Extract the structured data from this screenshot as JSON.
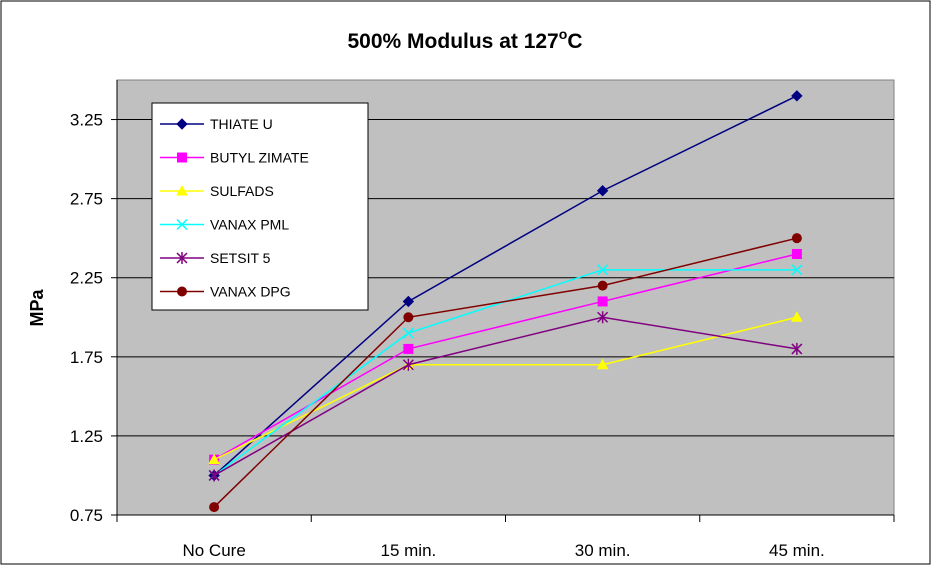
{
  "chart_data": {
    "type": "line",
    "title": "500% Modulus at 127",
    "title_superscript": "o",
    "title_suffix": "C",
    "xlabel": "",
    "ylabel": "MPa",
    "categories": [
      "No Cure",
      "15 min.",
      "30 min.",
      "45 min."
    ],
    "ylim": [
      0.75,
      3.5
    ],
    "yticks": [
      "0.75",
      "1.25",
      "1.75",
      "2.25",
      "2.75",
      "3.25"
    ],
    "grid": true,
    "legend_position": "top-left",
    "plot_background": "#c0c0c0",
    "series": [
      {
        "name": "THIATE U",
        "values": [
          1.0,
          2.1,
          2.8,
          3.4
        ],
        "color": "#000080",
        "marker": "diamond"
      },
      {
        "name": "BUTYL ZIMATE",
        "values": [
          1.1,
          1.8,
          2.1,
          2.4
        ],
        "color": "#ff00ff",
        "marker": "square"
      },
      {
        "name": "SULFADS",
        "values": [
          1.1,
          1.7,
          1.7,
          2.0
        ],
        "color": "#ffff00",
        "marker": "triangle"
      },
      {
        "name": "VANAX PML",
        "values": [
          1.0,
          1.9,
          2.3,
          2.3
        ],
        "color": "#00ffff",
        "marker": "x"
      },
      {
        "name": "SETSIT 5",
        "values": [
          1.0,
          1.7,
          2.0,
          1.8
        ],
        "color": "#800080",
        "marker": "star"
      },
      {
        "name": "VANAX DPG",
        "values": [
          0.8,
          2.0,
          2.2,
          2.5
        ],
        "color": "#800000",
        "marker": "circle"
      }
    ]
  }
}
